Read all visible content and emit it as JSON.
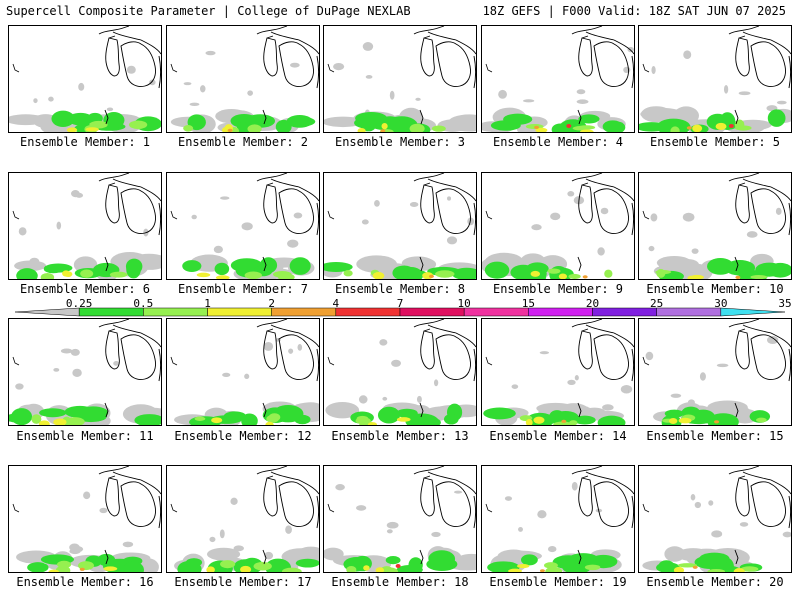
{
  "header": {
    "left_title": "Supercell Composite Parameter | College of DuPage NEXLAB",
    "right_title": "18Z GEFS | F000 Valid: 18Z SAT JUN 07 2025"
  },
  "members": [
    {
      "label": "Ensemble Member: 1"
    },
    {
      "label": "Ensemble Member: 2"
    },
    {
      "label": "Ensemble Member: 3"
    },
    {
      "label": "Ensemble Member: 4"
    },
    {
      "label": "Ensemble Member: 5"
    },
    {
      "label": "Ensemble Member: 6"
    },
    {
      "label": "Ensemble Member: 7"
    },
    {
      "label": "Ensemble Member: 8"
    },
    {
      "label": "Ensemble Member: 9"
    },
    {
      "label": "Ensemble Member: 10"
    },
    {
      "label": "Ensemble Member: 11"
    },
    {
      "label": "Ensemble Member: 12"
    },
    {
      "label": "Ensemble Member: 13"
    },
    {
      "label": "Ensemble Member: 14"
    },
    {
      "label": "Ensemble Member: 15"
    },
    {
      "label": "Ensemble Member: 16"
    },
    {
      "label": "Ensemble Member: 17"
    },
    {
      "label": "Ensemble Member: 18"
    },
    {
      "label": "Ensemble Member: 19"
    },
    {
      "label": "Ensemble Member: 20"
    }
  ],
  "legend": {
    "levels": [
      "0.25",
      "0.5",
      "1",
      "2",
      "4",
      "7",
      "10",
      "15",
      "20",
      "25",
      "30",
      "35"
    ],
    "colors": [
      "#c8c8c8",
      "#32dc32",
      "#96f050",
      "#f0f032",
      "#f0a032",
      "#f03232",
      "#e01060",
      "#f032a0",
      "#d020f0",
      "#8020e0",
      "#b070e0",
      "#40e0f0"
    ]
  },
  "colors": {
    "low": "#c8c8c8",
    "green": "#32dc32",
    "light_green": "#96f050",
    "yellow": "#f0f032",
    "orange": "#f0a032",
    "red": "#f03232"
  }
}
